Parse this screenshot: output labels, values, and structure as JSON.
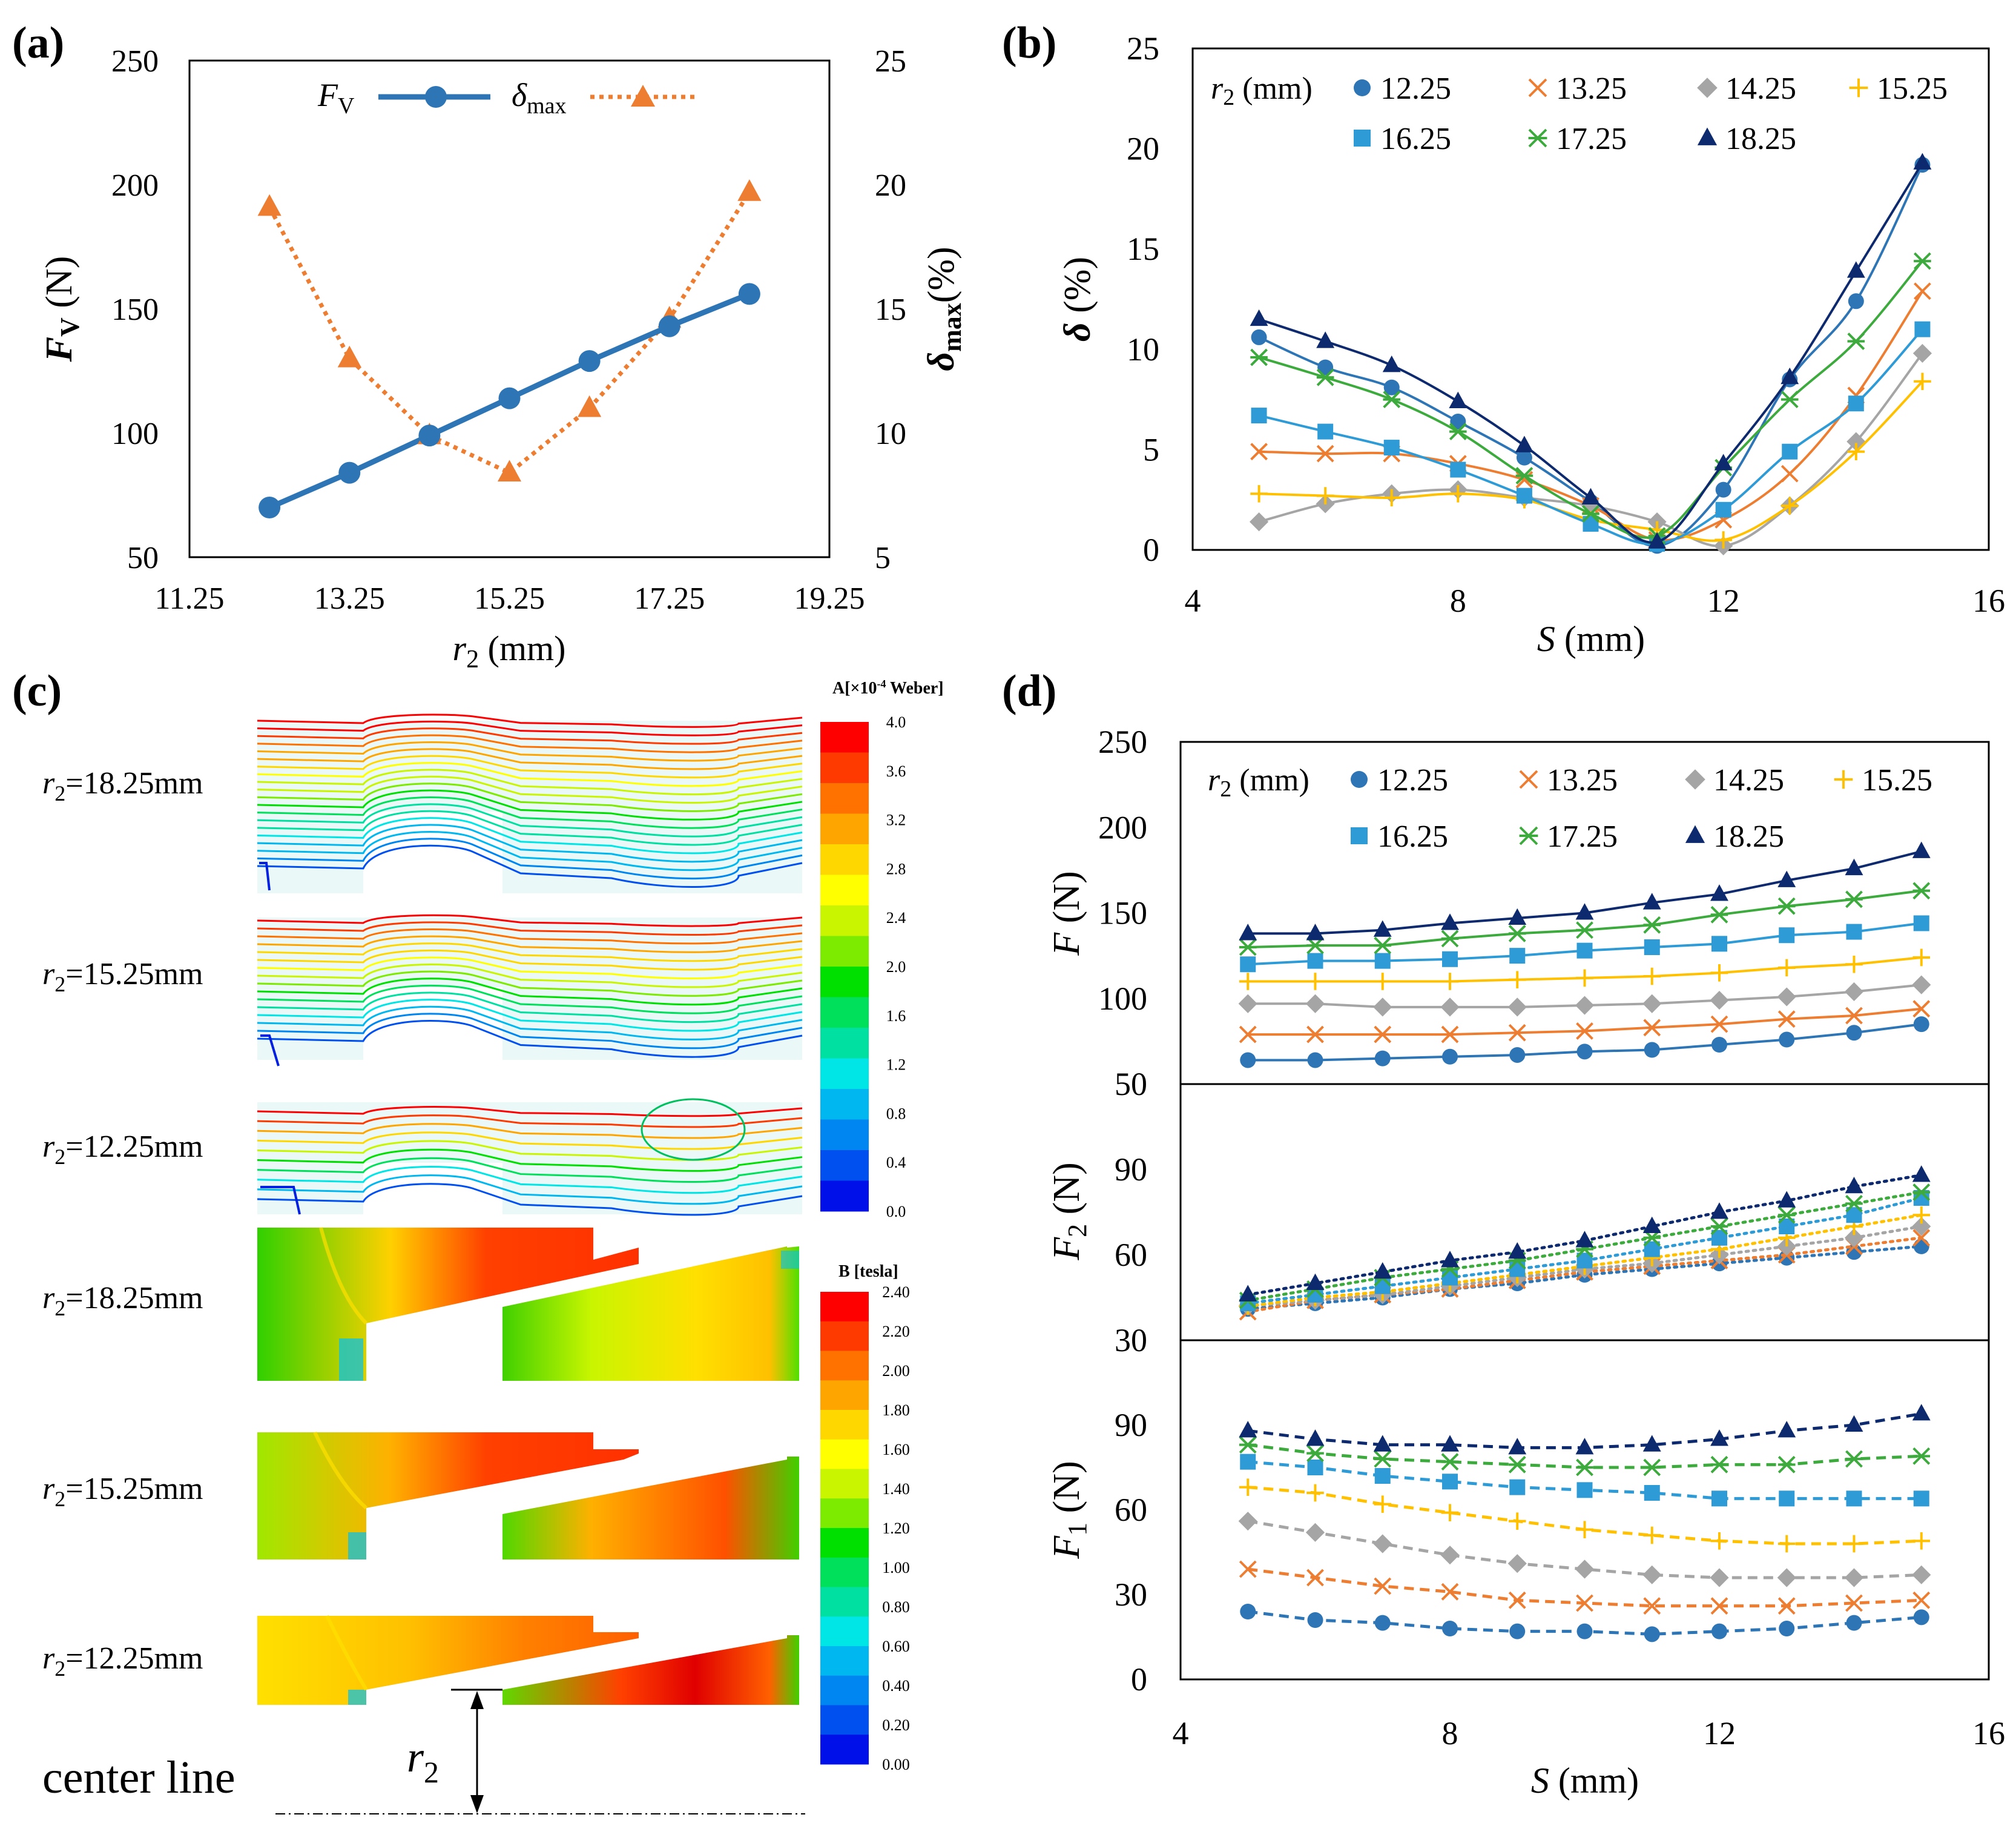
{
  "panels": {
    "a": {
      "letter": "(a)"
    },
    "b": {
      "letter": "(b)"
    },
    "c": {
      "letter": "(c)"
    },
    "d": {
      "letter": "(d)"
    }
  },
  "colors": {
    "r12_25": "#2E75B6",
    "r13_25": "#ED7D31",
    "r14_25": "#A5A5A5",
    "r15_25": "#FFC000",
    "r16_25": "#2E9BD6",
    "r17_25": "#3DAA3D",
    "r18_25": "#0E2A6E",
    "fv": "#2E75B6",
    "dmax": "#ED7D31"
  },
  "chart_data": [
    {
      "id": "a",
      "type": "line",
      "x": [
        12.25,
        13.25,
        14.25,
        15.25,
        16.25,
        17.25,
        18.25
      ],
      "xlabel_main": "r",
      "xlabel_sub": "2",
      "xlabel_unit": " (mm)",
      "xlim": [
        11.25,
        19.25
      ],
      "xticks": [
        "11.25",
        "13.25",
        "15.25",
        "17.25",
        "19.25"
      ],
      "ylabel_left_main": "F",
      "ylabel_left_sub": "V",
      "ylabel_left_unit": " (N)",
      "ylim_left": [
        50,
        250
      ],
      "yticks_left": [
        "50",
        "100",
        "150",
        "200",
        "250"
      ],
      "ylabel_right_main": "δ",
      "ylabel_right_sub": "max",
      "ylabel_right_unit": "(%)",
      "ylim_right": [
        5,
        25
      ],
      "yticks_right": [
        "5",
        "10",
        "15",
        "20",
        "25"
      ],
      "series": [
        {
          "name": "F",
          "name_sub": "V",
          "axis": "left",
          "color": "#2E75B6",
          "values": [
            70,
            84,
            99,
            114,
            129,
            143,
            156
          ]
        },
        {
          "name": "δ",
          "name_sub": "max",
          "axis": "right",
          "color": "#ED7D31",
          "values": [
            19.1,
            13.0,
            9.9,
            8.4,
            11.0,
            14.6,
            19.7
          ]
        }
      ]
    },
    {
      "id": "b",
      "type": "line",
      "legend_title_main": "r",
      "legend_title_sub": "2",
      "legend_title_unit": " (mm)",
      "x": [
        5,
        6,
        7,
        8,
        9,
        10,
        11,
        12,
        13,
        14,
        15
      ],
      "xlabel_main": "S",
      "xlabel_unit": " (mm)",
      "xlim": [
        4,
        16
      ],
      "xticks": [
        "4",
        "8",
        "12",
        "16"
      ],
      "ylabel_main": "δ",
      "ylabel_unit": " (%)",
      "ylim": [
        0,
        25
      ],
      "yticks": [
        "0",
        "5",
        "10",
        "15",
        "20",
        "25"
      ],
      "series": [
        {
          "name": "12.25",
          "values": [
            10.6,
            9.1,
            8.1,
            6.4,
            4.6,
            2.4,
            0.2,
            3.0,
            8.5,
            12.4,
            19.2
          ]
        },
        {
          "name": "13.25",
          "values": [
            4.9,
            4.8,
            4.8,
            4.3,
            3.5,
            2.2,
            0.5,
            1.5,
            3.8,
            7.7,
            12.9
          ]
        },
        {
          "name": "14.25",
          "values": [
            1.4,
            2.3,
            2.8,
            3.0,
            2.6,
            2.2,
            1.4,
            0.2,
            2.2,
            5.4,
            9.8
          ]
        },
        {
          "name": "15.25",
          "values": [
            2.8,
            2.7,
            2.6,
            2.8,
            2.5,
            1.5,
            1.0,
            0.5,
            2.2,
            4.9,
            8.4
          ]
        },
        {
          "name": "16.25",
          "values": [
            6.7,
            5.9,
            5.1,
            4.0,
            2.7,
            1.3,
            0.3,
            2.0,
            4.9,
            7.3,
            11.0
          ]
        },
        {
          "name": "17.25",
          "values": [
            9.6,
            8.6,
            7.5,
            5.9,
            3.7,
            1.8,
            0.7,
            4.1,
            7.5,
            10.4,
            14.4
          ]
        },
        {
          "name": "18.25",
          "values": [
            11.5,
            10.4,
            9.2,
            7.4,
            5.2,
            2.6,
            0.4,
            4.3,
            8.6,
            13.9,
            19.3
          ]
        }
      ]
    },
    {
      "id": "d",
      "type": "line",
      "legend_title_main": "r",
      "legend_title_sub": "2",
      "legend_title_unit": " (mm)",
      "x": [
        5,
        6,
        7,
        8,
        9,
        10,
        11,
        12,
        13,
        14,
        15
      ],
      "xlabel_main": "S",
      "xlabel_unit": " (mm)",
      "xlim": [
        4,
        16
      ],
      "xticks": [
        "4",
        "8",
        "12",
        "16"
      ],
      "subplots": [
        {
          "id": "F",
          "ylabel_main": "F",
          "ylabel_sub": "",
          "ylabel_unit": " (N)",
          "line_style": "solid",
          "ylim": [
            50,
            250
          ],
          "yticks": [
            "50",
            "100",
            "150",
            "200",
            "250"
          ],
          "series": [
            {
              "name": "12.25",
              "values": [
                64,
                64,
                65,
                66,
                67,
                69,
                70,
                73,
                76,
                80,
                85
              ]
            },
            {
              "name": "13.25",
              "values": [
                79,
                79,
                79,
                79,
                80,
                81,
                83,
                85,
                88,
                90,
                94
              ]
            },
            {
              "name": "14.25",
              "values": [
                97,
                97,
                95,
                95,
                95,
                96,
                97,
                99,
                101,
                104,
                108
              ]
            },
            {
              "name": "15.25",
              "values": [
                110,
                110,
                110,
                110,
                111,
                112,
                113,
                115,
                118,
                120,
                124
              ]
            },
            {
              "name": "16.25",
              "values": [
                120,
                122,
                122,
                123,
                125,
                128,
                130,
                132,
                137,
                139,
                144
              ]
            },
            {
              "name": "17.25",
              "values": [
                130,
                131,
                131,
                135,
                138,
                140,
                143,
                149,
                154,
                158,
                163
              ]
            },
            {
              "name": "18.25",
              "values": [
                138,
                138,
                140,
                144,
                147,
                150,
                156,
                161,
                169,
                176,
                186
              ]
            }
          ]
        },
        {
          "id": "F2",
          "ylabel_main": "F",
          "ylabel_sub": "2",
          "ylabel_unit": " (N)",
          "line_style": "dotted",
          "ylim": [
            30,
            120
          ],
          "yticks": [
            "30",
            "60",
            "90"
          ],
          "series": [
            {
              "name": "12.25",
              "values": [
                41,
                43,
                45,
                48,
                50,
                53,
                55,
                57,
                59,
                61,
                63
              ]
            },
            {
              "name": "13.25",
              "values": [
                40,
                44,
                46,
                48,
                51,
                54,
                56,
                58,
                60,
                63,
                66
              ]
            },
            {
              "name": "14.25",
              "values": [
                42,
                44,
                46,
                49,
                52,
                55,
                57,
                60,
                63,
                66,
                70
              ]
            },
            {
              "name": "15.25",
              "values": [
                42,
                45,
                47,
                50,
                53,
                56,
                59,
                62,
                66,
                70,
                74
              ]
            },
            {
              "name": "16.25",
              "values": [
                43,
                46,
                49,
                52,
                55,
                58,
                62,
                66,
                70,
                74,
                80
              ]
            },
            {
              "name": "17.25",
              "values": [
                44,
                48,
                52,
                55,
                58,
                62,
                66,
                70,
                74,
                78,
                82
              ]
            },
            {
              "name": "18.25",
              "values": [
                46,
                50,
                54,
                58,
                61,
                65,
                70,
                75,
                79,
                84,
                88
              ]
            }
          ]
        },
        {
          "id": "F1",
          "ylabel_main": "F",
          "ylabel_sub": "1",
          "ylabel_unit": " (N)",
          "line_style": "dashed",
          "ylim": [
            0,
            120
          ],
          "yticks": [
            "0",
            "30",
            "60",
            "90"
          ],
          "series": [
            {
              "name": "12.25",
              "values": [
                24,
                21,
                20,
                18,
                17,
                17,
                16,
                17,
                18,
                20,
                22
              ]
            },
            {
              "name": "13.25",
              "values": [
                39,
                36,
                33,
                31,
                28,
                27,
                26,
                26,
                26,
                27,
                28
              ]
            },
            {
              "name": "14.25",
              "values": [
                56,
                52,
                48,
                44,
                41,
                39,
                37,
                36,
                36,
                36,
                37
              ]
            },
            {
              "name": "15.25",
              "values": [
                68,
                66,
                62,
                59,
                56,
                53,
                51,
                49,
                48,
                48,
                49
              ]
            },
            {
              "name": "16.25",
              "values": [
                77,
                75,
                72,
                70,
                68,
                67,
                66,
                64,
                64,
                64,
                64
              ]
            },
            {
              "name": "17.25",
              "values": [
                83,
                80,
                78,
                77,
                76,
                75,
                75,
                76,
                76,
                78,
                79
              ]
            },
            {
              "name": "18.25",
              "values": [
                88,
                85,
                83,
                83,
                82,
                82,
                83,
                85,
                88,
                90,
                94
              ]
            }
          ]
        }
      ]
    }
  ],
  "panel_c": {
    "a_colorbar_title": "A[×10",
    "a_colorbar_title_exp": "-4",
    "a_colorbar_title_end": " Weber]",
    "a_ticks": [
      "4.0",
      "3.6",
      "3.2",
      "2.8",
      "2.4",
      "2.0",
      "1.6",
      "1.2",
      "0.8",
      "0.4",
      "0.0"
    ],
    "b_colorbar_title": "B [tesla]",
    "b_ticks": [
      "2.40",
      "2.20",
      "2.00",
      "1.80",
      "1.60",
      "1.40",
      "1.20",
      "1.00",
      "0.80",
      "0.60",
      "0.40",
      "0.20",
      "0.00"
    ],
    "colorbar_colors": [
      "#FF0000",
      "#FF3A00",
      "#FF7200",
      "#FFA500",
      "#FFD700",
      "#FFFF00",
      "#C9F500",
      "#7CEB00",
      "#00E000",
      "#00E05A",
      "#00E0A0",
      "#00E6E6",
      "#00B7F0",
      "#0086F0",
      "#0050F0",
      "#0010E8"
    ],
    "row_labels": [
      {
        "main": "r",
        "sub": "2",
        "rest": "=18.25mm"
      },
      {
        "main": "r",
        "sub": "2",
        "rest": "=15.25mm"
      },
      {
        "main": "r",
        "sub": "2",
        "rest": "=12.25mm"
      },
      {
        "main": "r",
        "sub": "2",
        "rest": "=18.25mm"
      },
      {
        "main": "r",
        "sub": "2",
        "rest": "=15.25mm"
      },
      {
        "main": "r",
        "sub": "2",
        "rest": "=12.25mm"
      }
    ],
    "center_line": "center line",
    "dim_main": "r",
    "dim_sub": "2"
  }
}
